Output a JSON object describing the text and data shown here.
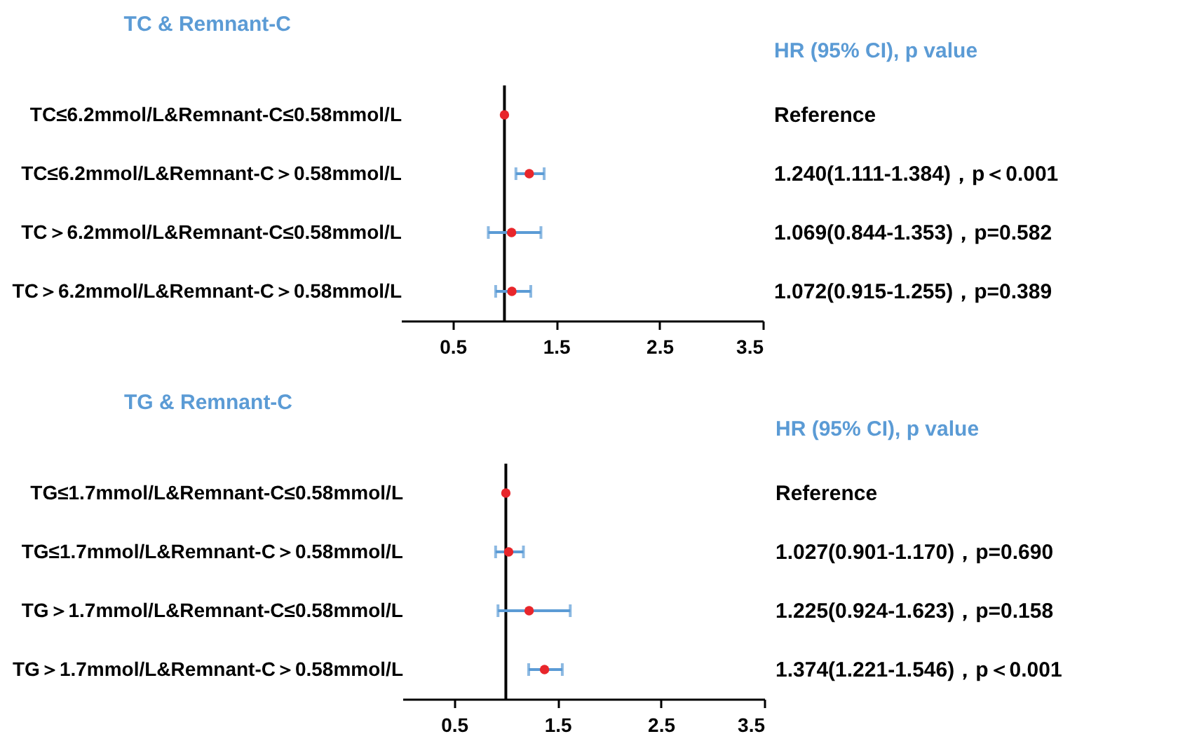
{
  "chart_data": [
    {
      "type": "scatter",
      "orientation": "horizontal",
      "title": "TC & Remnant-C",
      "annotations": [
        "HR (95% CI), p value",
        "Reference",
        "1.240(1.111-1.384)，p＜0.001",
        "1.069(0.844-1.353)，p=0.582",
        "1.072(0.915-1.255)，p=0.389"
      ],
      "categories": [
        "TC≤6.2mmol/L&Remnant-C≤0.58mmol/L",
        "TC≤6.2mmol/L&Remnant-C＞0.58mmol/L",
        "TC＞6.2mmol/L&Remnant-C≤0.58mmol/L",
        "TC＞6.2mmol/L&Remnant-C＞0.58mmol/L"
      ],
      "values": [
        1,
        1.24,
        1.069,
        1.072
      ],
      "errors": [
        null,
        [
          1.111,
          1.384
        ],
        [
          0.844,
          1.353
        ],
        [
          0.915,
          1.255
        ]
      ],
      "color": "#e8262b",
      "marker": "circle",
      "xlim": [
        0,
        3.5
      ],
      "xticks": [
        0.5,
        1.5,
        2.5,
        3.5
      ],
      "ref_lines": [
        {
          "axis": "x",
          "value": 1
        }
      ]
    },
    {
      "type": "scatter",
      "orientation": "horizontal",
      "title": "TG & Remnant-C",
      "annotations": [
        "HR (95% CI), p value",
        "Reference",
        "1.027(0.901-1.170)，p=0.690",
        "1.225(0.924-1.623)，p=0.158",
        "1.374(1.221-1.546)，p＜0.001"
      ],
      "categories": [
        "TG≤1.7mmol/L&Remnant-C≤0.58mmol/L",
        "TG≤1.7mmol/L&Remnant-C＞0.58mmol/L",
        "TG＞1.7mmol/L&Remnant-C≤0.58mmol/L",
        "TG＞1.7mmol/L&Remnant-C＞0.58mmol/L"
      ],
      "values": [
        1,
        1.027,
        1.225,
        1.374
      ],
      "errors": [
        null,
        [
          0.901,
          1.17
        ],
        [
          0.924,
          1.623
        ],
        [
          1.221,
          1.546
        ]
      ],
      "color": "#e8262b",
      "marker": "circle",
      "xlim": [
        0,
        3.5
      ],
      "xticks": [
        0.5,
        1.5,
        2.5,
        3.5
      ],
      "ref_lines": [
        {
          "axis": "x",
          "value": 1
        }
      ]
    }
  ]
}
